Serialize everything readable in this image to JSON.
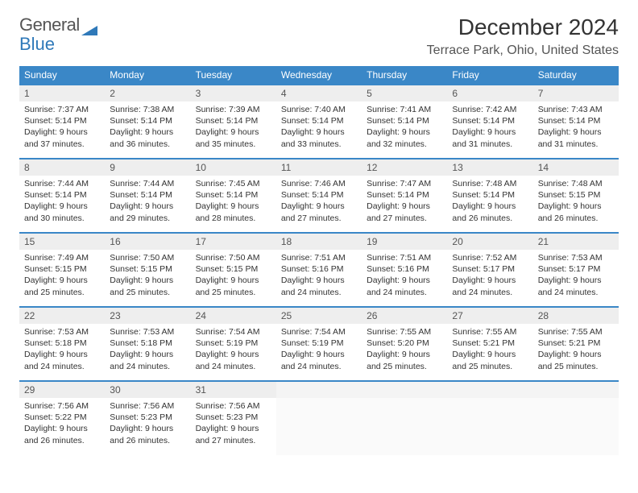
{
  "logo": {
    "part1": "General",
    "part2": "Blue"
  },
  "title": "December 2024",
  "location": "Terrace Park, Ohio, United States",
  "colors": {
    "header_bg": "#3a87c7",
    "header_text": "#ffffff",
    "daynum_bg": "#eeeeee",
    "row_border": "#3a87c7",
    "logo_accent": "#2f79b9",
    "body_text": "#333333"
  },
  "weekdays": [
    "Sunday",
    "Monday",
    "Tuesday",
    "Wednesday",
    "Thursday",
    "Friday",
    "Saturday"
  ],
  "weeks": [
    [
      {
        "n": "1",
        "sr": "Sunrise: 7:37 AM",
        "ss": "Sunset: 5:14 PM",
        "d1": "Daylight: 9 hours",
        "d2": "and 37 minutes."
      },
      {
        "n": "2",
        "sr": "Sunrise: 7:38 AM",
        "ss": "Sunset: 5:14 PM",
        "d1": "Daylight: 9 hours",
        "d2": "and 36 minutes."
      },
      {
        "n": "3",
        "sr": "Sunrise: 7:39 AM",
        "ss": "Sunset: 5:14 PM",
        "d1": "Daylight: 9 hours",
        "d2": "and 35 minutes."
      },
      {
        "n": "4",
        "sr": "Sunrise: 7:40 AM",
        "ss": "Sunset: 5:14 PM",
        "d1": "Daylight: 9 hours",
        "d2": "and 33 minutes."
      },
      {
        "n": "5",
        "sr": "Sunrise: 7:41 AM",
        "ss": "Sunset: 5:14 PM",
        "d1": "Daylight: 9 hours",
        "d2": "and 32 minutes."
      },
      {
        "n": "6",
        "sr": "Sunrise: 7:42 AM",
        "ss": "Sunset: 5:14 PM",
        "d1": "Daylight: 9 hours",
        "d2": "and 31 minutes."
      },
      {
        "n": "7",
        "sr": "Sunrise: 7:43 AM",
        "ss": "Sunset: 5:14 PM",
        "d1": "Daylight: 9 hours",
        "d2": "and 31 minutes."
      }
    ],
    [
      {
        "n": "8",
        "sr": "Sunrise: 7:44 AM",
        "ss": "Sunset: 5:14 PM",
        "d1": "Daylight: 9 hours",
        "d2": "and 30 minutes."
      },
      {
        "n": "9",
        "sr": "Sunrise: 7:44 AM",
        "ss": "Sunset: 5:14 PM",
        "d1": "Daylight: 9 hours",
        "d2": "and 29 minutes."
      },
      {
        "n": "10",
        "sr": "Sunrise: 7:45 AM",
        "ss": "Sunset: 5:14 PM",
        "d1": "Daylight: 9 hours",
        "d2": "and 28 minutes."
      },
      {
        "n": "11",
        "sr": "Sunrise: 7:46 AM",
        "ss": "Sunset: 5:14 PM",
        "d1": "Daylight: 9 hours",
        "d2": "and 27 minutes."
      },
      {
        "n": "12",
        "sr": "Sunrise: 7:47 AM",
        "ss": "Sunset: 5:14 PM",
        "d1": "Daylight: 9 hours",
        "d2": "and 27 minutes."
      },
      {
        "n": "13",
        "sr": "Sunrise: 7:48 AM",
        "ss": "Sunset: 5:14 PM",
        "d1": "Daylight: 9 hours",
        "d2": "and 26 minutes."
      },
      {
        "n": "14",
        "sr": "Sunrise: 7:48 AM",
        "ss": "Sunset: 5:15 PM",
        "d1": "Daylight: 9 hours",
        "d2": "and 26 minutes."
      }
    ],
    [
      {
        "n": "15",
        "sr": "Sunrise: 7:49 AM",
        "ss": "Sunset: 5:15 PM",
        "d1": "Daylight: 9 hours",
        "d2": "and 25 minutes."
      },
      {
        "n": "16",
        "sr": "Sunrise: 7:50 AM",
        "ss": "Sunset: 5:15 PM",
        "d1": "Daylight: 9 hours",
        "d2": "and 25 minutes."
      },
      {
        "n": "17",
        "sr": "Sunrise: 7:50 AM",
        "ss": "Sunset: 5:15 PM",
        "d1": "Daylight: 9 hours",
        "d2": "and 25 minutes."
      },
      {
        "n": "18",
        "sr": "Sunrise: 7:51 AM",
        "ss": "Sunset: 5:16 PM",
        "d1": "Daylight: 9 hours",
        "d2": "and 24 minutes."
      },
      {
        "n": "19",
        "sr": "Sunrise: 7:51 AM",
        "ss": "Sunset: 5:16 PM",
        "d1": "Daylight: 9 hours",
        "d2": "and 24 minutes."
      },
      {
        "n": "20",
        "sr": "Sunrise: 7:52 AM",
        "ss": "Sunset: 5:17 PM",
        "d1": "Daylight: 9 hours",
        "d2": "and 24 minutes."
      },
      {
        "n": "21",
        "sr": "Sunrise: 7:53 AM",
        "ss": "Sunset: 5:17 PM",
        "d1": "Daylight: 9 hours",
        "d2": "and 24 minutes."
      }
    ],
    [
      {
        "n": "22",
        "sr": "Sunrise: 7:53 AM",
        "ss": "Sunset: 5:18 PM",
        "d1": "Daylight: 9 hours",
        "d2": "and 24 minutes."
      },
      {
        "n": "23",
        "sr": "Sunrise: 7:53 AM",
        "ss": "Sunset: 5:18 PM",
        "d1": "Daylight: 9 hours",
        "d2": "and 24 minutes."
      },
      {
        "n": "24",
        "sr": "Sunrise: 7:54 AM",
        "ss": "Sunset: 5:19 PM",
        "d1": "Daylight: 9 hours",
        "d2": "and 24 minutes."
      },
      {
        "n": "25",
        "sr": "Sunrise: 7:54 AM",
        "ss": "Sunset: 5:19 PM",
        "d1": "Daylight: 9 hours",
        "d2": "and 24 minutes."
      },
      {
        "n": "26",
        "sr": "Sunrise: 7:55 AM",
        "ss": "Sunset: 5:20 PM",
        "d1": "Daylight: 9 hours",
        "d2": "and 25 minutes."
      },
      {
        "n": "27",
        "sr": "Sunrise: 7:55 AM",
        "ss": "Sunset: 5:21 PM",
        "d1": "Daylight: 9 hours",
        "d2": "and 25 minutes."
      },
      {
        "n": "28",
        "sr": "Sunrise: 7:55 AM",
        "ss": "Sunset: 5:21 PM",
        "d1": "Daylight: 9 hours",
        "d2": "and 25 minutes."
      }
    ],
    [
      {
        "n": "29",
        "sr": "Sunrise: 7:56 AM",
        "ss": "Sunset: 5:22 PM",
        "d1": "Daylight: 9 hours",
        "d2": "and 26 minutes."
      },
      {
        "n": "30",
        "sr": "Sunrise: 7:56 AM",
        "ss": "Sunset: 5:23 PM",
        "d1": "Daylight: 9 hours",
        "d2": "and 26 minutes."
      },
      {
        "n": "31",
        "sr": "Sunrise: 7:56 AM",
        "ss": "Sunset: 5:23 PM",
        "d1": "Daylight: 9 hours",
        "d2": "and 27 minutes."
      },
      {
        "empty": true
      },
      {
        "empty": true
      },
      {
        "empty": true
      },
      {
        "empty": true
      }
    ]
  ]
}
